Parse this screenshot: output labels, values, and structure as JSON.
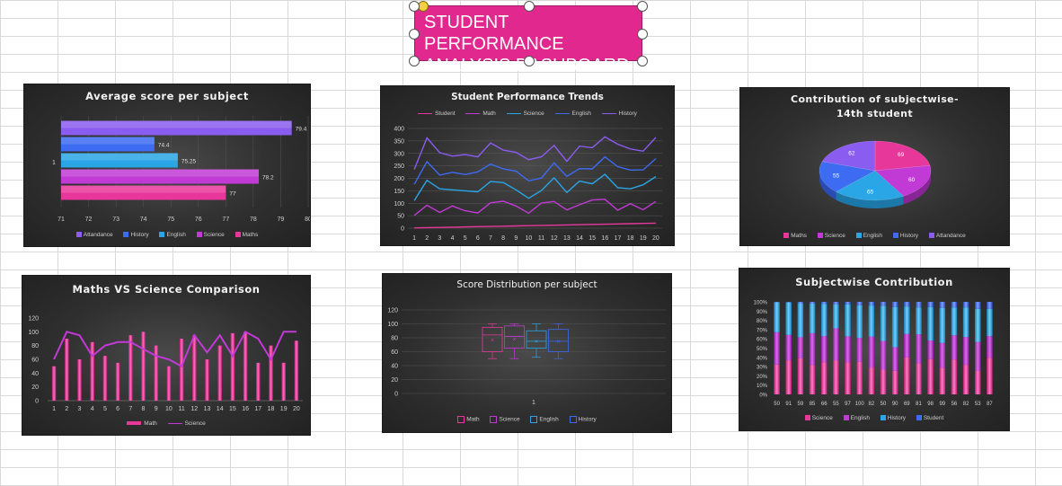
{
  "dashboard": {
    "title_line1": "STUDENT PERFORMANCE",
    "title_line2": "ANALYSIS DASHBOARD"
  },
  "colors": {
    "attendance": "#8a5cf0",
    "history": "#3d6bf2",
    "english": "#2aa6e6",
    "science": "#c23ad6",
    "maths": "#e8379b",
    "student": "#e8379b"
  },
  "chart_data": [
    {
      "id": "avg",
      "type": "bar",
      "orientation": "horizontal",
      "title": "Average score per subject",
      "category": "1",
      "series": [
        {
          "name": "Attandance",
          "value": 79.4
        },
        {
          "name": "History",
          "value": 74.4
        },
        {
          "name": "English",
          "value": 75.25
        },
        {
          "name": "Science",
          "value": 78.2
        },
        {
          "name": "Maths",
          "value": 77
        }
      ],
      "xlim": [
        71,
        80
      ],
      "xticks": [
        "71",
        "72",
        "73",
        "74",
        "75",
        "76",
        "77",
        "78",
        "79",
        "80"
      ]
    },
    {
      "id": "trend",
      "type": "line",
      "stacked": true,
      "title": "Student Performance Trends",
      "x": [
        "1",
        "2",
        "3",
        "4",
        "5",
        "6",
        "7",
        "8",
        "9",
        "10",
        "11",
        "12",
        "13",
        "14",
        "15",
        "16",
        "17",
        "18",
        "19",
        "20"
      ],
      "series": [
        {
          "name": "Student",
          "values": [
            1,
            2,
            3,
            4,
            5,
            6,
            7,
            8,
            9,
            10,
            11,
            12,
            13,
            14,
            15,
            16,
            17,
            18,
            19,
            20
          ]
        },
        {
          "name": "Math",
          "values": [
            50,
            90,
            60,
            85,
            65,
            55,
            95,
            100,
            80,
            50,
            90,
            95,
            60,
            80,
            98,
            100,
            55,
            80,
            55,
            87
          ]
        },
        {
          "name": "Science",
          "values": [
            60,
            100,
            95,
            65,
            80,
            85,
            85,
            75,
            65,
            60,
            50,
            95,
            70,
            95,
            65,
            100,
            90,
            60,
            100,
            100
          ]
        },
        {
          "name": "English",
          "values": [
            65,
            75,
            55,
            70,
            65,
            80,
            70,
            55,
            75,
            70,
            50,
            60,
            65,
            50,
            60,
            70,
            85,
            75,
            60,
            72
          ]
        },
        {
          "name": "History",
          "values": [
            60,
            95,
            90,
            65,
            80,
            60,
            85,
            75,
            75,
            85,
            85,
            70,
            60,
            90,
            85,
            80,
            90,
            85,
            75,
            85
          ]
        }
      ],
      "ylim": [
        0,
        400
      ],
      "yticks": [
        "0",
        "50",
        "100",
        "150",
        "200",
        "250",
        "300",
        "350",
        "400"
      ]
    },
    {
      "id": "contrib14",
      "type": "pie",
      "title_line1": "Contribution of subjectwise-",
      "title_line2": "14th student",
      "slices": [
        {
          "name": "Maths",
          "value": 69
        },
        {
          "name": "Science",
          "value": 60
        },
        {
          "name": "English",
          "value": 65
        },
        {
          "name": "History",
          "value": 55
        },
        {
          "name": "Attandance",
          "value": 62
        }
      ]
    },
    {
      "id": "mvs",
      "type": "bar",
      "title": "Maths VS Science Comparison",
      "x": [
        "1",
        "2",
        "3",
        "4",
        "5",
        "6",
        "7",
        "8",
        "9",
        "10",
        "11",
        "12",
        "13",
        "14",
        "15",
        "16",
        "17",
        "18",
        "19",
        "20"
      ],
      "series": [
        {
          "name": "Math",
          "kind": "bar",
          "values": [
            50,
            90,
            60,
            85,
            65,
            55,
            95,
            100,
            80,
            50,
            90,
            95,
            60,
            80,
            98,
            100,
            55,
            80,
            55,
            87
          ]
        },
        {
          "name": "Science",
          "kind": "line",
          "values": [
            60,
            100,
            95,
            65,
            80,
            85,
            85,
            75,
            65,
            60,
            50,
            95,
            70,
            95,
            65,
            100,
            90,
            60,
            100,
            100
          ]
        }
      ],
      "ylim": [
        0,
        120
      ],
      "yticks": [
        "0",
        "20",
        "40",
        "60",
        "80",
        "100",
        "120"
      ]
    },
    {
      "id": "dist",
      "type": "box",
      "title": "Score Distribution per subject",
      "category": "1",
      "series": [
        {
          "name": "Math",
          "min": 50,
          "q1": 60,
          "median": 84,
          "q3": 95,
          "max": 100,
          "mean": 77
        },
        {
          "name": "Science",
          "min": 50,
          "q1": 65,
          "median": 82,
          "q3": 97,
          "max": 100,
          "mean": 78
        },
        {
          "name": "English",
          "min": 52,
          "q1": 65,
          "median": 75,
          "q3": 90,
          "max": 100,
          "mean": 75
        },
        {
          "name": "History",
          "min": 50,
          "q1": 60,
          "median": 75,
          "q3": 92,
          "max": 100,
          "mean": 75
        }
      ],
      "ylim": [
        0,
        120
      ],
      "yticks": [
        "0",
        "20",
        "40",
        "60",
        "80",
        "100",
        "120"
      ]
    },
    {
      "id": "sw",
      "type": "bar",
      "stacked_percent": true,
      "title": "Subjectwise Contribution",
      "x": [
        "50",
        "91",
        "59",
        "85",
        "66",
        "55",
        "97",
        "100",
        "82",
        "50",
        "90",
        "69",
        "81",
        "98",
        "99",
        "56",
        "82",
        "53",
        "87"
      ],
      "series": [
        {
          "name": "Science",
          "values": [
            60,
            100,
            95,
            65,
            80,
            85,
            85,
            75,
            65,
            60,
            50,
            95,
            70,
            95,
            65,
            100,
            90,
            60,
            100
          ]
        },
        {
          "name": "English",
          "values": [
            65,
            75,
            55,
            70,
            65,
            80,
            70,
            55,
            75,
            70,
            50,
            60,
            65,
            50,
            60,
            70,
            85,
            75,
            60
          ]
        },
        {
          "name": "History",
          "values": [
            60,
            95,
            90,
            65,
            80,
            60,
            85,
            75,
            75,
            85,
            85,
            70,
            60,
            90,
            85,
            80,
            90,
            85,
            75
          ]
        },
        {
          "name": "Student",
          "values": [
            1,
            2,
            3,
            4,
            5,
            6,
            7,
            8,
            9,
            10,
            11,
            12,
            13,
            14,
            15,
            16,
            17,
            18,
            19
          ]
        }
      ],
      "ylim": [
        0,
        100
      ],
      "yticks": [
        "0%",
        "10%",
        "20%",
        "30%",
        "40%",
        "50%",
        "60%",
        "70%",
        "80%",
        "90%",
        "100%"
      ]
    }
  ]
}
